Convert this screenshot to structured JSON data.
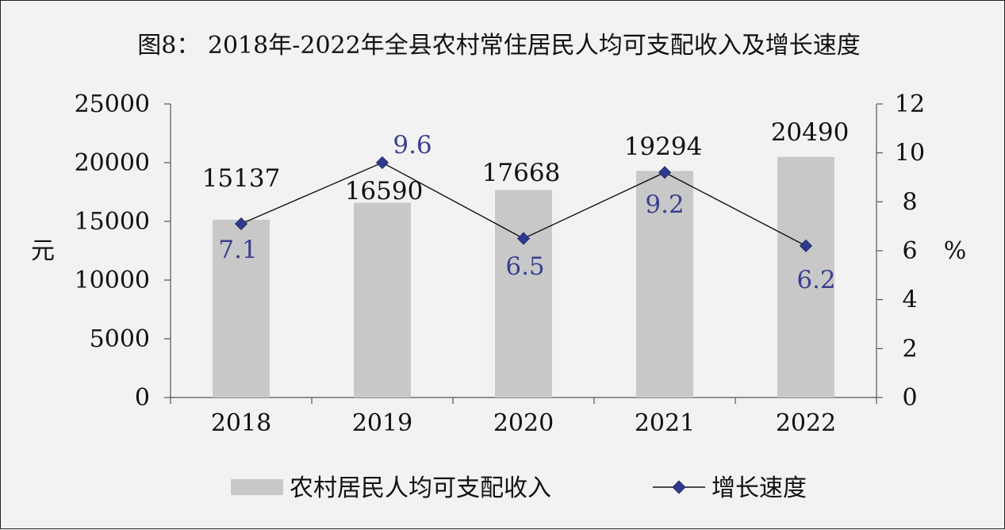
{
  "chart_data": {
    "type": "bar+line",
    "title": "图8： 2018年-2022年全县农村常住居民人均可支配收入及增长速度",
    "categories": [
      "2018",
      "2019",
      "2020",
      "2021",
      "2022"
    ],
    "series": [
      {
        "name": "农村居民人均可支配收入",
        "type": "bar",
        "axis": "left",
        "values": [
          15137,
          16590,
          17668,
          19294,
          20490
        ],
        "labels": [
          "15137",
          "16590",
          "17668",
          "19294",
          "20490"
        ],
        "color": "#c8c8c8"
      },
      {
        "name": "增长速度",
        "type": "line",
        "axis": "right",
        "values": [
          7.1,
          9.6,
          6.5,
          9.2,
          6.2
        ],
        "labels": [
          "7.1",
          "9.6",
          "6.5",
          "9.2",
          "6.2"
        ],
        "color": "#2e3a8c",
        "line_color": "#111111",
        "label_color": "#3a3f8f"
      }
    ],
    "y_left": {
      "label": "元",
      "ylim": [
        0,
        25000
      ],
      "ticks": [
        "0",
        "5000",
        "10000",
        "15000",
        "20000",
        "25000"
      ]
    },
    "y_right": {
      "label": "%",
      "ylim": [
        0,
        12
      ],
      "ticks": [
        "0",
        "2",
        "4",
        "6",
        "8",
        "10",
        "12"
      ]
    },
    "grid": false,
    "legend_position": "bottom"
  }
}
